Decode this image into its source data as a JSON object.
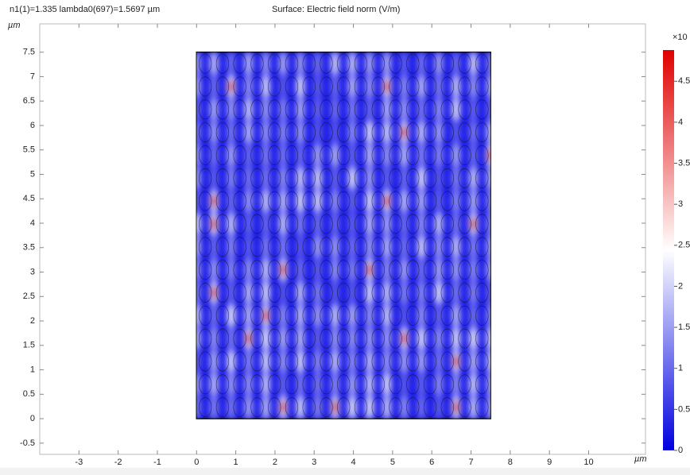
{
  "chart_data": {
    "type": "surface",
    "header": "n1(1)=1.335 lambda0(697)=1.5697 µm",
    "title": "Surface: Electric field norm (V/m)",
    "x_unit": "µm",
    "y_unit": "µm",
    "xlim": [
      -4,
      11.45
    ],
    "ylim": [
      -0.73,
      8.08
    ],
    "xticks": [
      -3,
      -2,
      -1,
      0,
      1,
      2,
      3,
      4,
      5,
      6,
      7,
      8,
      9,
      10
    ],
    "yticks": [
      -0.5,
      0,
      0.5,
      1,
      1.5,
      2,
      2.5,
      3,
      3.5,
      4,
      4.5,
      5,
      5.5,
      6,
      6.5,
      7,
      7.5
    ],
    "domain": {
      "x": [
        0,
        7.5
      ],
      "y": [
        0,
        7.5
      ]
    },
    "colorbar": {
      "label": "×10",
      "clim": [
        0,
        4.88
      ],
      "ticks": [
        0,
        0.5,
        1,
        1.5,
        2,
        2.5,
        3,
        3.5,
        4,
        4.5
      ]
    }
  }
}
